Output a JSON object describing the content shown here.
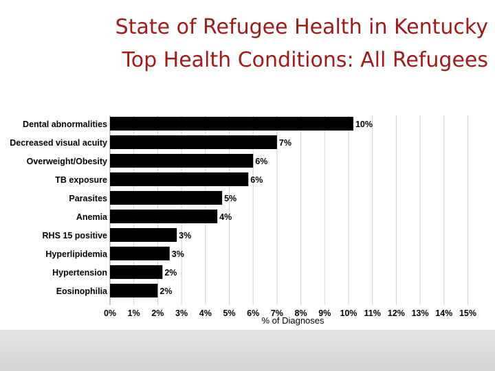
{
  "slide": {
    "title_line1": "State of Refugee Health in Kentucky",
    "title_line2": "Top Health Conditions:  All Refugees"
  },
  "chart_data": {
    "type": "bar",
    "orientation": "horizontal",
    "categories": [
      "Dental abnormalities",
      "Decreased visual acuity",
      "Overweight/Obesity",
      "TB exposure",
      "Parasites",
      "Anemia",
      "RHS 15 positive",
      "Hyperlipidemia",
      "Hypertension",
      "Eosinophilia"
    ],
    "values": [
      10.2,
      7.0,
      6.0,
      5.8,
      4.7,
      4.5,
      2.8,
      2.5,
      2.2,
      2.0
    ],
    "data_labels": [
      "10%",
      "7%",
      "6%",
      "6%",
      "5%",
      "4%",
      "3%",
      "3%",
      "2%",
      "2%"
    ],
    "xlim": [
      0,
      15
    ],
    "xticks": [
      "0%",
      "1%",
      "2%",
      "3%",
      "4%",
      "5%",
      "6%",
      "7%",
      "8%",
      "9%",
      "10%",
      "11%",
      "12%",
      "13%",
      "14%",
      "15%"
    ],
    "xlabel": "% of Diagnoses",
    "ylabel": "",
    "grid": true,
    "colors": {
      "bar": "#000000",
      "grid": "#d0d0d0",
      "text": "#000000",
      "title": "#a01a1a"
    }
  }
}
